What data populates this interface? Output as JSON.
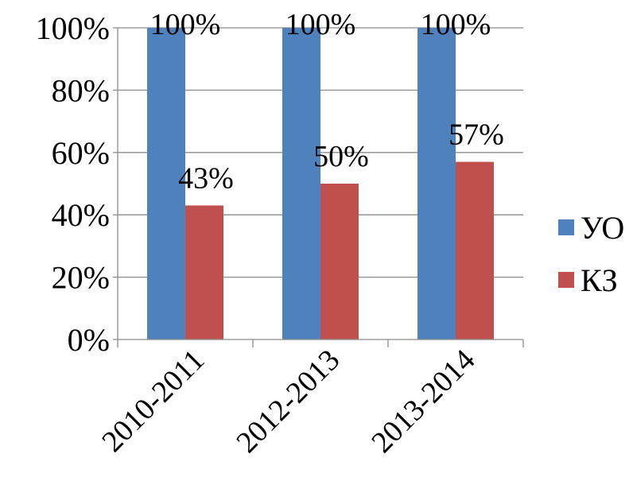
{
  "chart_data": {
    "type": "bar",
    "categories": [
      "2010-2011",
      "2012-2013",
      "2013-2014"
    ],
    "series": [
      {
        "name": "УО",
        "values": [
          100,
          100,
          100
        ],
        "labels": [
          "100%",
          "100%",
          "100%"
        ],
        "color": "#4F81BD"
      },
      {
        "name": "КЗ",
        "values": [
          43,
          50,
          57
        ],
        "labels": [
          "43%",
          "50%",
          "57%"
        ],
        "color": "#C0504D"
      }
    ],
    "yticks": [
      "0%",
      "20%",
      "40%",
      "60%",
      "80%",
      "100%"
    ],
    "ylim": [
      0,
      100
    ],
    "ystep": 20,
    "grid": true,
    "legend_position": "right"
  }
}
